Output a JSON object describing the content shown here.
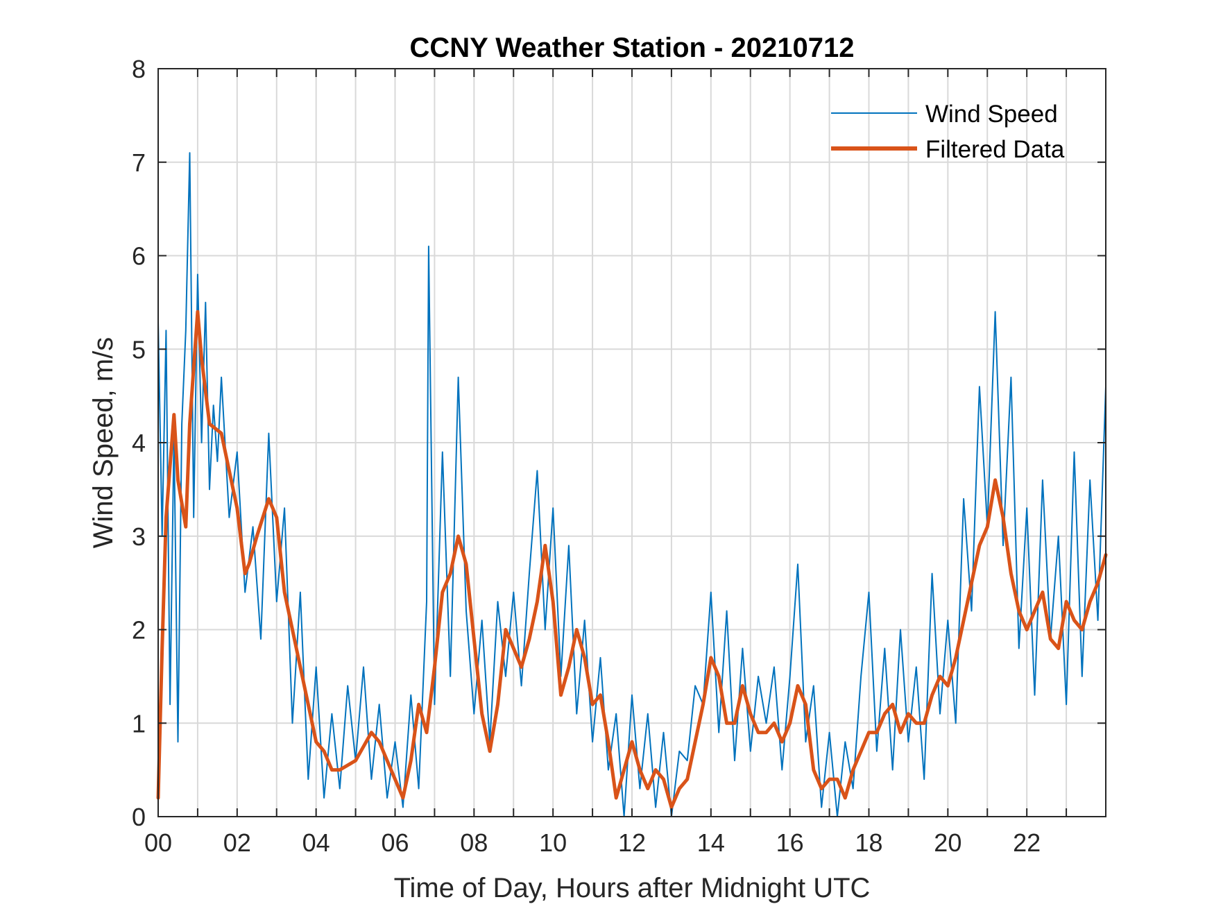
{
  "chart_data": {
    "type": "line",
    "title": "CCNY Weather Station - 20210712",
    "xlabel": "Time of Day, Hours after Midnight UTC",
    "ylabel": "Wind Speed, m/s",
    "xlim": [
      0,
      24
    ],
    "ylim": [
      0,
      8
    ],
    "grid": true,
    "legend_position": "top-right",
    "x_ticks": [
      0,
      2,
      4,
      6,
      8,
      10,
      12,
      14,
      16,
      18,
      20,
      22
    ],
    "x_tick_labels": [
      "00",
      "02",
      "04",
      "06",
      "08",
      "10",
      "12",
      "14",
      "16",
      "18",
      "20",
      "22"
    ],
    "y_ticks": [
      0,
      1,
      2,
      3,
      4,
      5,
      6,
      7,
      8
    ],
    "y_tick_labels": [
      "0",
      "1",
      "2",
      "3",
      "4",
      "5",
      "6",
      "7",
      "8"
    ],
    "series": [
      {
        "name": "Wind Speed",
        "color": "#0072BD",
        "style": "thin",
        "x": [
          0,
          0.1,
          0.2,
          0.3,
          0.4,
          0.5,
          0.6,
          0.7,
          0.8,
          0.9,
          1.0,
          1.1,
          1.2,
          1.3,
          1.4,
          1.5,
          1.6,
          1.8,
          2.0,
          2.2,
          2.4,
          2.6,
          2.8,
          3.0,
          3.2,
          3.4,
          3.6,
          3.8,
          4.0,
          4.2,
          4.4,
          4.6,
          4.8,
          5.0,
          5.2,
          5.4,
          5.6,
          5.8,
          6.0,
          6.2,
          6.4,
          6.6,
          6.8,
          6.85,
          7.0,
          7.2,
          7.4,
          7.6,
          7.8,
          8.0,
          8.2,
          8.4,
          8.6,
          8.8,
          9.0,
          9.2,
          9.4,
          9.6,
          9.8,
          10.0,
          10.2,
          10.4,
          10.6,
          10.8,
          11.0,
          11.2,
          11.4,
          11.6,
          11.8,
          12.0,
          12.2,
          12.4,
          12.6,
          12.8,
          13.0,
          13.2,
          13.4,
          13.6,
          13.8,
          14.0,
          14.2,
          14.4,
          14.6,
          14.8,
          15.0,
          15.2,
          15.4,
          15.6,
          15.8,
          16.0,
          16.2,
          16.4,
          16.6,
          16.8,
          17.0,
          17.2,
          17.4,
          17.6,
          17.8,
          18.0,
          18.2,
          18.4,
          18.6,
          18.8,
          19.0,
          19.2,
          19.4,
          19.6,
          19.8,
          20.0,
          20.2,
          20.4,
          20.6,
          20.8,
          21.0,
          21.2,
          21.4,
          21.6,
          21.8,
          22.0,
          22.2,
          22.4,
          22.6,
          22.8,
          23.0,
          23.2,
          23.4,
          23.6,
          23.8,
          24.0
        ],
        "values": [
          5.3,
          3.0,
          5.2,
          1.2,
          4.1,
          0.8,
          4.2,
          5.2,
          7.1,
          3.2,
          5.8,
          4.0,
          5.5,
          3.5,
          4.4,
          3.8,
          4.7,
          3.2,
          3.9,
          2.4,
          3.1,
          1.9,
          4.1,
          2.3,
          3.3,
          1.0,
          2.4,
          0.4,
          1.6,
          0.2,
          1.1,
          0.3,
          1.4,
          0.6,
          1.6,
          0.4,
          1.2,
          0.2,
          0.8,
          0.1,
          1.3,
          0.3,
          2.3,
          6.1,
          1.2,
          3.9,
          1.5,
          4.7,
          2.2,
          1.1,
          2.1,
          0.8,
          2.3,
          1.5,
          2.4,
          1.4,
          2.6,
          3.7,
          2.0,
          3.3,
          1.5,
          2.9,
          1.1,
          2.1,
          0.8,
          1.7,
          0.5,
          1.1,
          0.0,
          1.3,
          0.3,
          1.1,
          0.1,
          0.9,
          0.0,
          0.7,
          0.6,
          1.4,
          1.2,
          2.4,
          0.9,
          2.2,
          0.6,
          1.8,
          0.7,
          1.5,
          1.0,
          1.6,
          0.5,
          1.5,
          2.7,
          0.8,
          1.4,
          0.1,
          0.9,
          0.0,
          0.8,
          0.3,
          1.5,
          2.4,
          0.7,
          1.8,
          0.5,
          2.0,
          0.8,
          1.6,
          0.4,
          2.6,
          1.1,
          2.1,
          1.0,
          3.4,
          2.2,
          4.6,
          3.1,
          5.4,
          2.9,
          4.7,
          1.8,
          3.3,
          1.3,
          3.6,
          1.9,
          3.0,
          1.2,
          3.9,
          1.5,
          3.6,
          2.1,
          4.6
        ]
      },
      {
        "name": "Filtered Data",
        "color": "#D95319",
        "style": "thick",
        "x": [
          0,
          0.1,
          0.2,
          0.4,
          0.5,
          0.7,
          0.8,
          1.0,
          1.1,
          1.3,
          1.6,
          1.8,
          2.0,
          2.2,
          2.3,
          2.5,
          2.8,
          3.0,
          3.2,
          3.4,
          3.6,
          3.8,
          4.0,
          4.2,
          4.4,
          4.6,
          5.0,
          5.4,
          5.6,
          5.8,
          6.0,
          6.2,
          6.4,
          6.6,
          6.8,
          7.0,
          7.2,
          7.4,
          7.6,
          7.8,
          8.0,
          8.2,
          8.4,
          8.6,
          8.8,
          9.0,
          9.2,
          9.4,
          9.6,
          9.8,
          10.0,
          10.2,
          10.4,
          10.6,
          10.8,
          11.0,
          11.2,
          11.4,
          11.6,
          11.8,
          12.0,
          12.2,
          12.4,
          12.6,
          12.8,
          13.0,
          13.2,
          13.4,
          13.6,
          13.8,
          14.0,
          14.2,
          14.4,
          14.6,
          14.8,
          15.0,
          15.2,
          15.4,
          15.6,
          15.8,
          16.0,
          16.2,
          16.4,
          16.6,
          16.8,
          17.0,
          17.2,
          17.4,
          17.6,
          17.8,
          18.0,
          18.2,
          18.4,
          18.6,
          18.8,
          19.0,
          19.2,
          19.4,
          19.6,
          19.8,
          20.0,
          20.2,
          20.4,
          20.6,
          20.8,
          21.0,
          21.2,
          21.4,
          21.6,
          21.8,
          22.0,
          22.2,
          22.4,
          22.6,
          22.8,
          23.0,
          23.2,
          23.4,
          23.6,
          23.8,
          24.0
        ],
        "values": [
          0.2,
          1.8,
          3.2,
          4.3,
          3.6,
          3.1,
          4.2,
          5.4,
          4.9,
          4.2,
          4.1,
          3.7,
          3.3,
          2.6,
          2.7,
          3.0,
          3.4,
          3.2,
          2.4,
          2.0,
          1.6,
          1.2,
          0.8,
          0.7,
          0.5,
          0.5,
          0.6,
          0.9,
          0.8,
          0.6,
          0.4,
          0.2,
          0.6,
          1.2,
          0.9,
          1.6,
          2.4,
          2.6,
          3.0,
          2.7,
          1.9,
          1.1,
          0.7,
          1.2,
          2.0,
          1.8,
          1.6,
          1.9,
          2.3,
          2.9,
          2.3,
          1.3,
          1.6,
          2.0,
          1.7,
          1.2,
          1.3,
          0.8,
          0.2,
          0.5,
          0.8,
          0.5,
          0.3,
          0.5,
          0.4,
          0.1,
          0.3,
          0.4,
          0.8,
          1.2,
          1.7,
          1.5,
          1.0,
          1.0,
          1.4,
          1.1,
          0.9,
          0.9,
          1.0,
          0.8,
          1.0,
          1.4,
          1.2,
          0.5,
          0.3,
          0.4,
          0.4,
          0.2,
          0.5,
          0.7,
          0.9,
          0.9,
          1.1,
          1.2,
          0.9,
          1.1,
          1.0,
          1.0,
          1.3,
          1.5,
          1.4,
          1.7,
          2.1,
          2.5,
          2.9,
          3.1,
          3.6,
          3.2,
          2.6,
          2.2,
          2.0,
          2.2,
          2.4,
          1.9,
          1.8,
          2.3,
          2.1,
          2.0,
          2.3,
          2.5,
          2.8
        ]
      }
    ]
  }
}
